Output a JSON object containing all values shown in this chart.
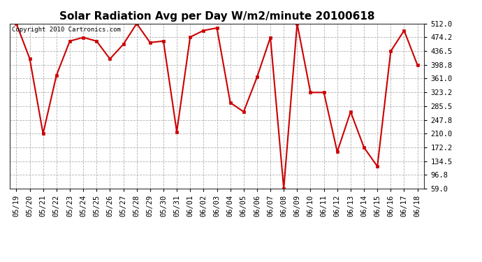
{
  "title": "Solar Radiation Avg per Day W/m2/minute 20100618",
  "copyright": "Copyright 2010 Cartronics.com",
  "dates": [
    "05/19",
    "05/20",
    "05/21",
    "05/22",
    "05/23",
    "05/24",
    "05/25",
    "05/26",
    "05/27",
    "05/28",
    "05/29",
    "05/30",
    "05/31",
    "06/01",
    "06/02",
    "06/03",
    "06/04",
    "06/05",
    "06/06",
    "06/07",
    "06/08",
    "06/09",
    "06/10",
    "06/11",
    "06/12",
    "06/13",
    "06/14",
    "06/15",
    "06/16",
    "06/17",
    "06/18"
  ],
  "values": [
    512,
    416,
    210,
    370,
    464,
    474,
    464,
    415,
    455,
    512,
    460,
    464,
    215,
    475,
    493,
    500,
    295,
    270,
    365,
    474,
    59,
    512,
    323,
    323,
    160,
    270,
    172,
    120,
    436,
    493,
    398
  ],
  "line_color": "#cc0000",
  "marker_color": "#cc0000",
  "bg_color": "#ffffff",
  "plot_bg_color": "#ffffff",
  "grid_color": "#aaaaaa",
  "yticks": [
    59.0,
    96.8,
    134.5,
    172.2,
    210.0,
    247.8,
    285.5,
    323.2,
    361.0,
    398.8,
    436.5,
    474.2,
    512.0
  ],
  "ymin": 59.0,
  "ymax": 512.0,
  "title_fontsize": 11,
  "copyright_fontsize": 6.5,
  "tick_fontsize": 7.5
}
